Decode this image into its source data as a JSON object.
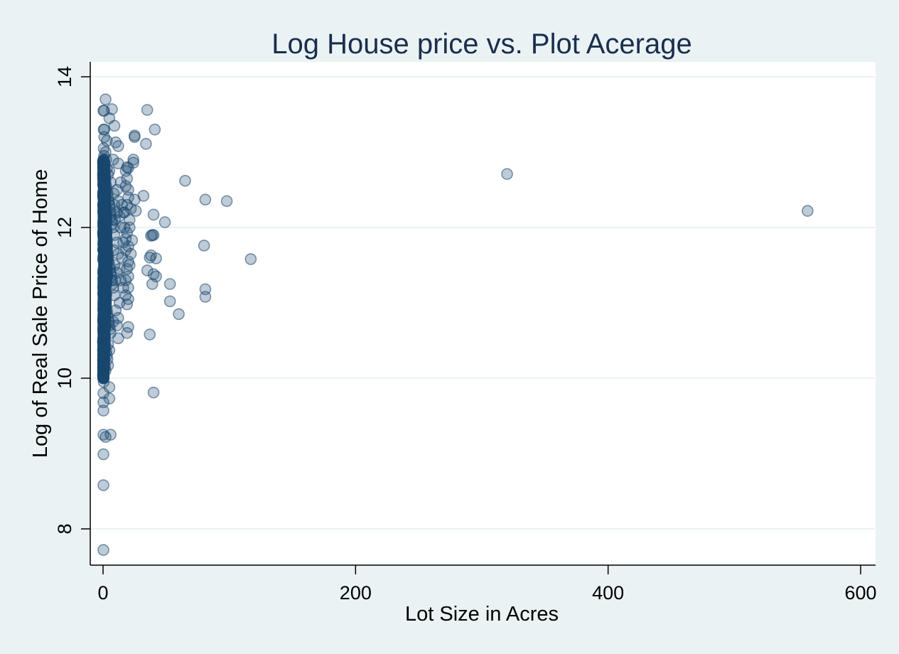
{
  "chart_data": {
    "type": "scatter",
    "title": "Log House price vs. Plot Acerage",
    "xlabel": "Lot Size in Acres",
    "ylabel": "Log of Real Sale Price of Home",
    "xlim": [
      0,
      600
    ],
    "ylim": [
      8,
      14
    ],
    "xticks": [
      0,
      200,
      400,
      600
    ],
    "yticks": [
      8,
      10,
      12,
      14
    ],
    "grid": "horizontal",
    "colors": {
      "background": "#eaf2f3",
      "plot": "#ffffff",
      "marker": "#1a476f",
      "title": "#1a2e4d"
    },
    "points": [
      [
        0.3,
        13.55
      ],
      [
        0.8,
        13.55
      ],
      [
        0.5,
        13.3
      ],
      [
        1.0,
        13.3
      ],
      [
        2,
        13.7
      ],
      [
        7,
        13.57
      ],
      [
        35,
        13.56
      ],
      [
        41,
        13.3
      ],
      [
        5,
        13.45
      ],
      [
        9,
        13.35
      ],
      [
        1,
        13.2
      ],
      [
        3,
        13.15
      ],
      [
        12,
        13.08
      ],
      [
        10,
        13.13
      ],
      [
        25,
        13.22
      ],
      [
        25,
        13.2
      ],
      [
        34,
        13.11
      ],
      [
        0.5,
        13.05
      ],
      [
        2,
        13.0
      ],
      [
        8,
        12.9
      ],
      [
        12,
        12.85
      ],
      [
        24,
        12.9
      ],
      [
        24,
        12.86
      ],
      [
        19,
        12.8
      ],
      [
        20,
        12.79
      ],
      [
        18,
        12.75
      ],
      [
        65,
        12.62
      ],
      [
        320,
        12.71
      ],
      [
        558,
        12.22
      ],
      [
        81,
        12.37
      ],
      [
        98,
        12.35
      ],
      [
        32,
        12.42
      ],
      [
        20,
        12.4
      ],
      [
        25,
        12.37
      ],
      [
        19,
        12.3
      ],
      [
        22,
        12.25
      ],
      [
        26,
        12.22
      ],
      [
        40,
        12.17
      ],
      [
        49,
        12.07
      ],
      [
        21,
        12.1
      ],
      [
        17,
        12.0
      ],
      [
        19,
        11.93
      ],
      [
        39,
        11.9
      ],
      [
        40,
        11.9
      ],
      [
        38,
        11.89
      ],
      [
        23,
        11.83
      ],
      [
        80,
        11.76
      ],
      [
        20,
        11.75
      ],
      [
        18,
        11.7
      ],
      [
        38,
        11.63
      ],
      [
        37,
        11.6
      ],
      [
        42,
        11.59
      ],
      [
        117,
        11.58
      ],
      [
        20,
        11.55
      ],
      [
        21,
        11.5
      ],
      [
        19,
        11.45
      ],
      [
        35,
        11.43
      ],
      [
        40,
        11.38
      ],
      [
        42,
        11.35
      ],
      [
        20,
        11.35
      ],
      [
        18,
        11.3
      ],
      [
        53,
        11.25
      ],
      [
        39,
        11.25
      ],
      [
        20,
        11.2
      ],
      [
        81,
        11.18
      ],
      [
        18,
        11.1
      ],
      [
        81,
        11.08
      ],
      [
        20,
        11.05
      ],
      [
        53,
        11.02
      ],
      [
        19,
        10.98
      ],
      [
        60,
        10.85
      ],
      [
        10,
        10.9
      ],
      [
        12,
        10.8
      ],
      [
        8,
        10.75
      ],
      [
        11,
        10.7
      ],
      [
        20,
        10.68
      ],
      [
        19,
        10.6
      ],
      [
        37,
        10.58
      ],
      [
        12,
        10.53
      ],
      [
        4,
        10.45
      ],
      [
        5,
        10.37
      ],
      [
        4,
        10.17
      ],
      [
        0.5,
        10.0
      ],
      [
        0.5,
        9.95
      ],
      [
        5,
        9.88
      ],
      [
        0.3,
        9.8
      ],
      [
        40,
        9.81
      ],
      [
        5,
        9.73
      ],
      [
        0.3,
        9.68
      ],
      [
        0.3,
        9.57
      ],
      [
        0.3,
        9.25
      ],
      [
        2,
        9.22
      ],
      [
        6,
        9.25
      ],
      [
        0.3,
        8.99
      ],
      [
        0.3,
        8.58
      ],
      [
        0.3,
        7.72
      ],
      [
        0.5,
        12.8
      ],
      [
        1.0,
        12.72
      ],
      [
        1.5,
        12.65
      ],
      [
        2.0,
        12.6
      ],
      [
        2.5,
        12.55
      ],
      [
        3.0,
        12.5
      ],
      [
        3.5,
        12.45
      ],
      [
        4.0,
        12.4
      ],
      [
        4.5,
        12.35
      ],
      [
        5.0,
        12.3
      ],
      [
        5.5,
        12.25
      ],
      [
        6.0,
        12.2
      ],
      [
        6.5,
        12.15
      ],
      [
        7.0,
        12.1
      ],
      [
        7.5,
        12.05
      ],
      [
        8.0,
        12.0
      ],
      [
        0.5,
        11.95
      ],
      [
        1.0,
        11.9
      ],
      [
        1.5,
        11.85
      ],
      [
        2.0,
        11.8
      ],
      [
        2.5,
        11.75
      ],
      [
        3.0,
        11.7
      ],
      [
        3.5,
        11.65
      ],
      [
        4.0,
        11.6
      ],
      [
        4.5,
        11.55
      ],
      [
        5.0,
        11.5
      ],
      [
        5.5,
        11.45
      ],
      [
        6.0,
        11.4
      ],
      [
        6.5,
        11.35
      ],
      [
        7.0,
        11.3
      ],
      [
        7.5,
        11.25
      ],
      [
        8.0,
        11.2
      ],
      [
        0.5,
        11.15
      ],
      [
        1.0,
        11.1
      ],
      [
        1.5,
        11.05
      ],
      [
        2.0,
        11.0
      ],
      [
        2.5,
        10.95
      ],
      [
        3.0,
        10.9
      ],
      [
        3.5,
        10.85
      ],
      [
        4.0,
        10.8
      ],
      [
        4.5,
        10.75
      ],
      [
        5.0,
        10.7
      ],
      [
        5.5,
        10.65
      ],
      [
        6.0,
        10.6
      ],
      [
        0.5,
        10.55
      ],
      [
        1.0,
        10.5
      ],
      [
        1.5,
        10.45
      ],
      [
        2.0,
        10.4
      ],
      [
        2.5,
        10.35
      ],
      [
        3.0,
        10.3
      ],
      [
        3.5,
        10.25
      ],
      [
        1.0,
        10.2
      ],
      [
        1.5,
        10.15
      ],
      [
        2.0,
        10.1
      ],
      [
        0.5,
        10.05
      ],
      [
        8.5,
        12.45
      ],
      [
        9.0,
        12.3
      ],
      [
        9.5,
        12.1
      ],
      [
        9.0,
        11.9
      ],
      [
        8.5,
        11.7
      ],
      [
        9.0,
        11.5
      ],
      [
        9.5,
        11.3
      ],
      [
        9.0,
        11.1
      ],
      [
        14,
        12.6
      ],
      [
        15,
        12.3
      ],
      [
        14,
        12.0
      ],
      [
        15,
        11.6
      ],
      [
        14,
        11.3
      ],
      [
        13,
        11.0
      ],
      [
        16,
        12.2
      ],
      [
        16,
        11.8
      ],
      [
        11,
        12.5
      ],
      [
        11,
        12.2
      ],
      [
        11,
        11.8
      ],
      [
        11,
        11.4
      ],
      [
        12,
        12.35
      ],
      [
        12,
        11.65
      ],
      [
        13,
        12.15
      ],
      [
        13,
        11.45
      ],
      [
        0.5,
        12.9
      ],
      [
        0.8,
        12.95
      ],
      [
        1.2,
        12.85
      ],
      [
        3,
        12.78
      ],
      [
        4,
        12.7
      ],
      [
        2.5,
        12.9
      ],
      [
        6,
        12.6
      ],
      [
        5,
        12.75
      ],
      [
        18,
        12.55
      ],
      [
        20,
        12.5
      ],
      [
        17,
        12.2
      ],
      [
        21,
        12.0
      ],
      [
        18,
        11.85
      ],
      [
        22,
        11.65
      ],
      [
        16,
        11.2
      ],
      [
        19,
        12.65
      ]
    ]
  }
}
